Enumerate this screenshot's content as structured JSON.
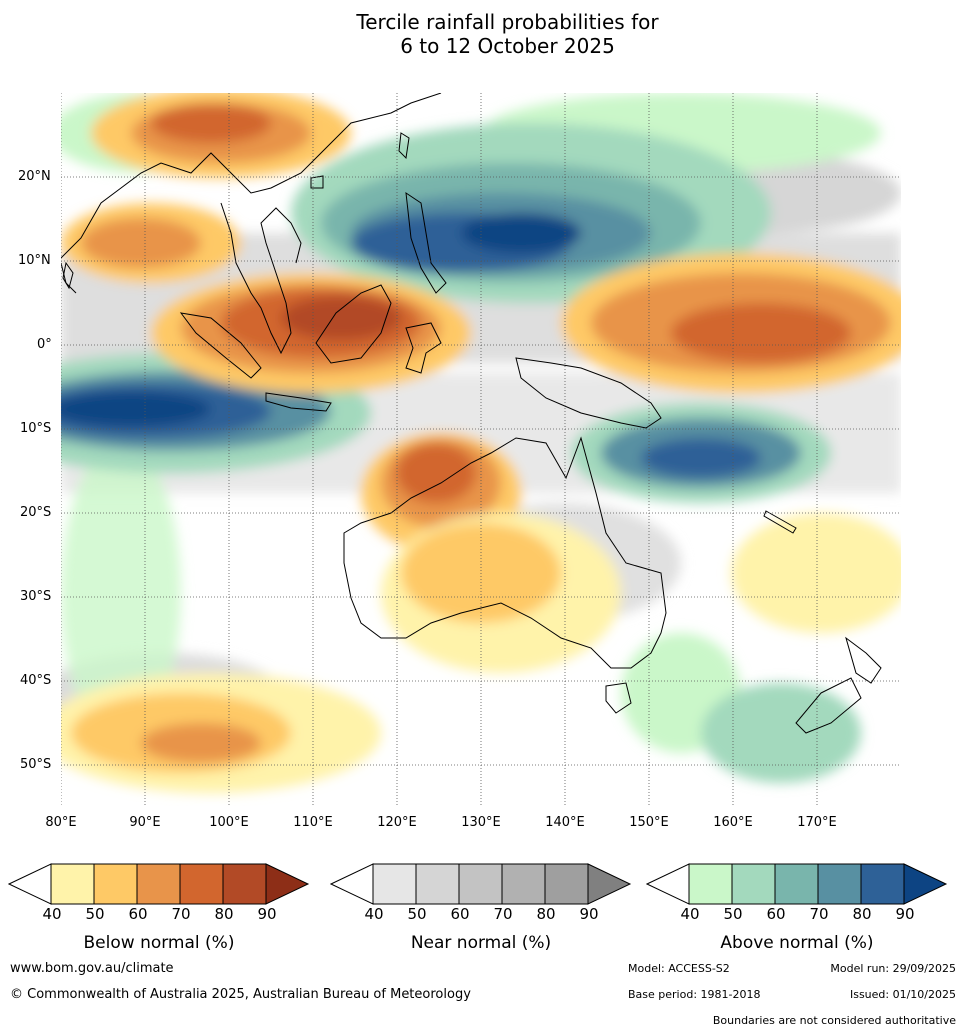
{
  "title_line1": "Tercile rainfall probabilities for",
  "title_line2": "6 to 12 October 2025",
  "lat_labels": [
    "20°N",
    "10°N",
    "0°",
    "10°S",
    "20°S",
    "30°S",
    "40°S",
    "50°S"
  ],
  "lon_labels": [
    "80°E",
    "90°E",
    "100°E",
    "110°E",
    "120°E",
    "130°E",
    "140°E",
    "150°E",
    "160°E",
    "170°E"
  ],
  "legend": {
    "ticks": [
      "40",
      "50",
      "60",
      "70",
      "80",
      "90"
    ],
    "below": {
      "label": "Below normal (%)",
      "colors": [
        "#fff3aa",
        "#fec966",
        "#e8944a",
        "#d2662e",
        "#b24a26",
        "#8d2e17"
      ]
    },
    "near": {
      "label": "Near normal (%)",
      "colors": [
        "#e6e6e6",
        "#d5d5d5",
        "#c3c3c3",
        "#b1b1b1",
        "#9f9f9f",
        "#808080"
      ]
    },
    "above": {
      "label": "Above normal (%)",
      "colors": [
        "#caf7c9",
        "#a3d9bd",
        "#79b5ac",
        "#5890a2",
        "#2e6197",
        "#0d4483"
      ]
    }
  },
  "footer": {
    "website": "www.bom.gov.au/climate",
    "copyright": "© Commonwealth of Australia 2025, Australian Bureau of Meteorology",
    "model": "Model: ACCESS-S2",
    "model_run": "Model run: 29/09/2025",
    "base_period": "Base period: 1981-2018",
    "issued": "Issued: 01/10/2025",
    "boundaries": "Boundaries are not considered authoritative"
  }
}
